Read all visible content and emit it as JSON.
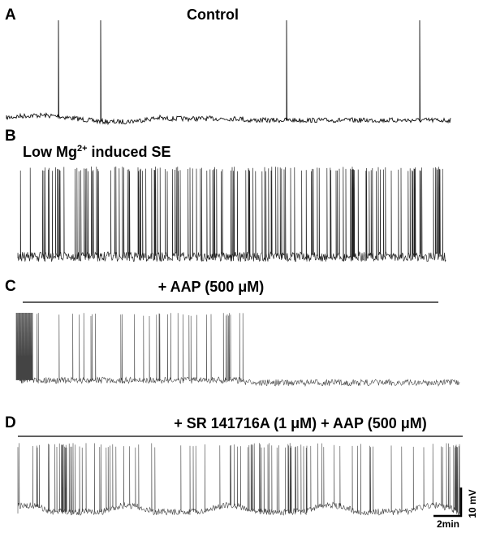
{
  "panels": [
    {
      "label": "A",
      "title": "Control"
    },
    {
      "label": "B",
      "title": {
        "pre": "Low Mg",
        "sup": "2+",
        "post": " induced SE"
      }
    },
    {
      "label": "C",
      "title": "+ AAP (500 μM)"
    },
    {
      "label": "D",
      "title": "+ SR 141716A (1 μM) + AAP (500 μM)"
    }
  ],
  "scale_bar": {
    "vertical": "10 mV",
    "horizontal": "2min"
  }
}
